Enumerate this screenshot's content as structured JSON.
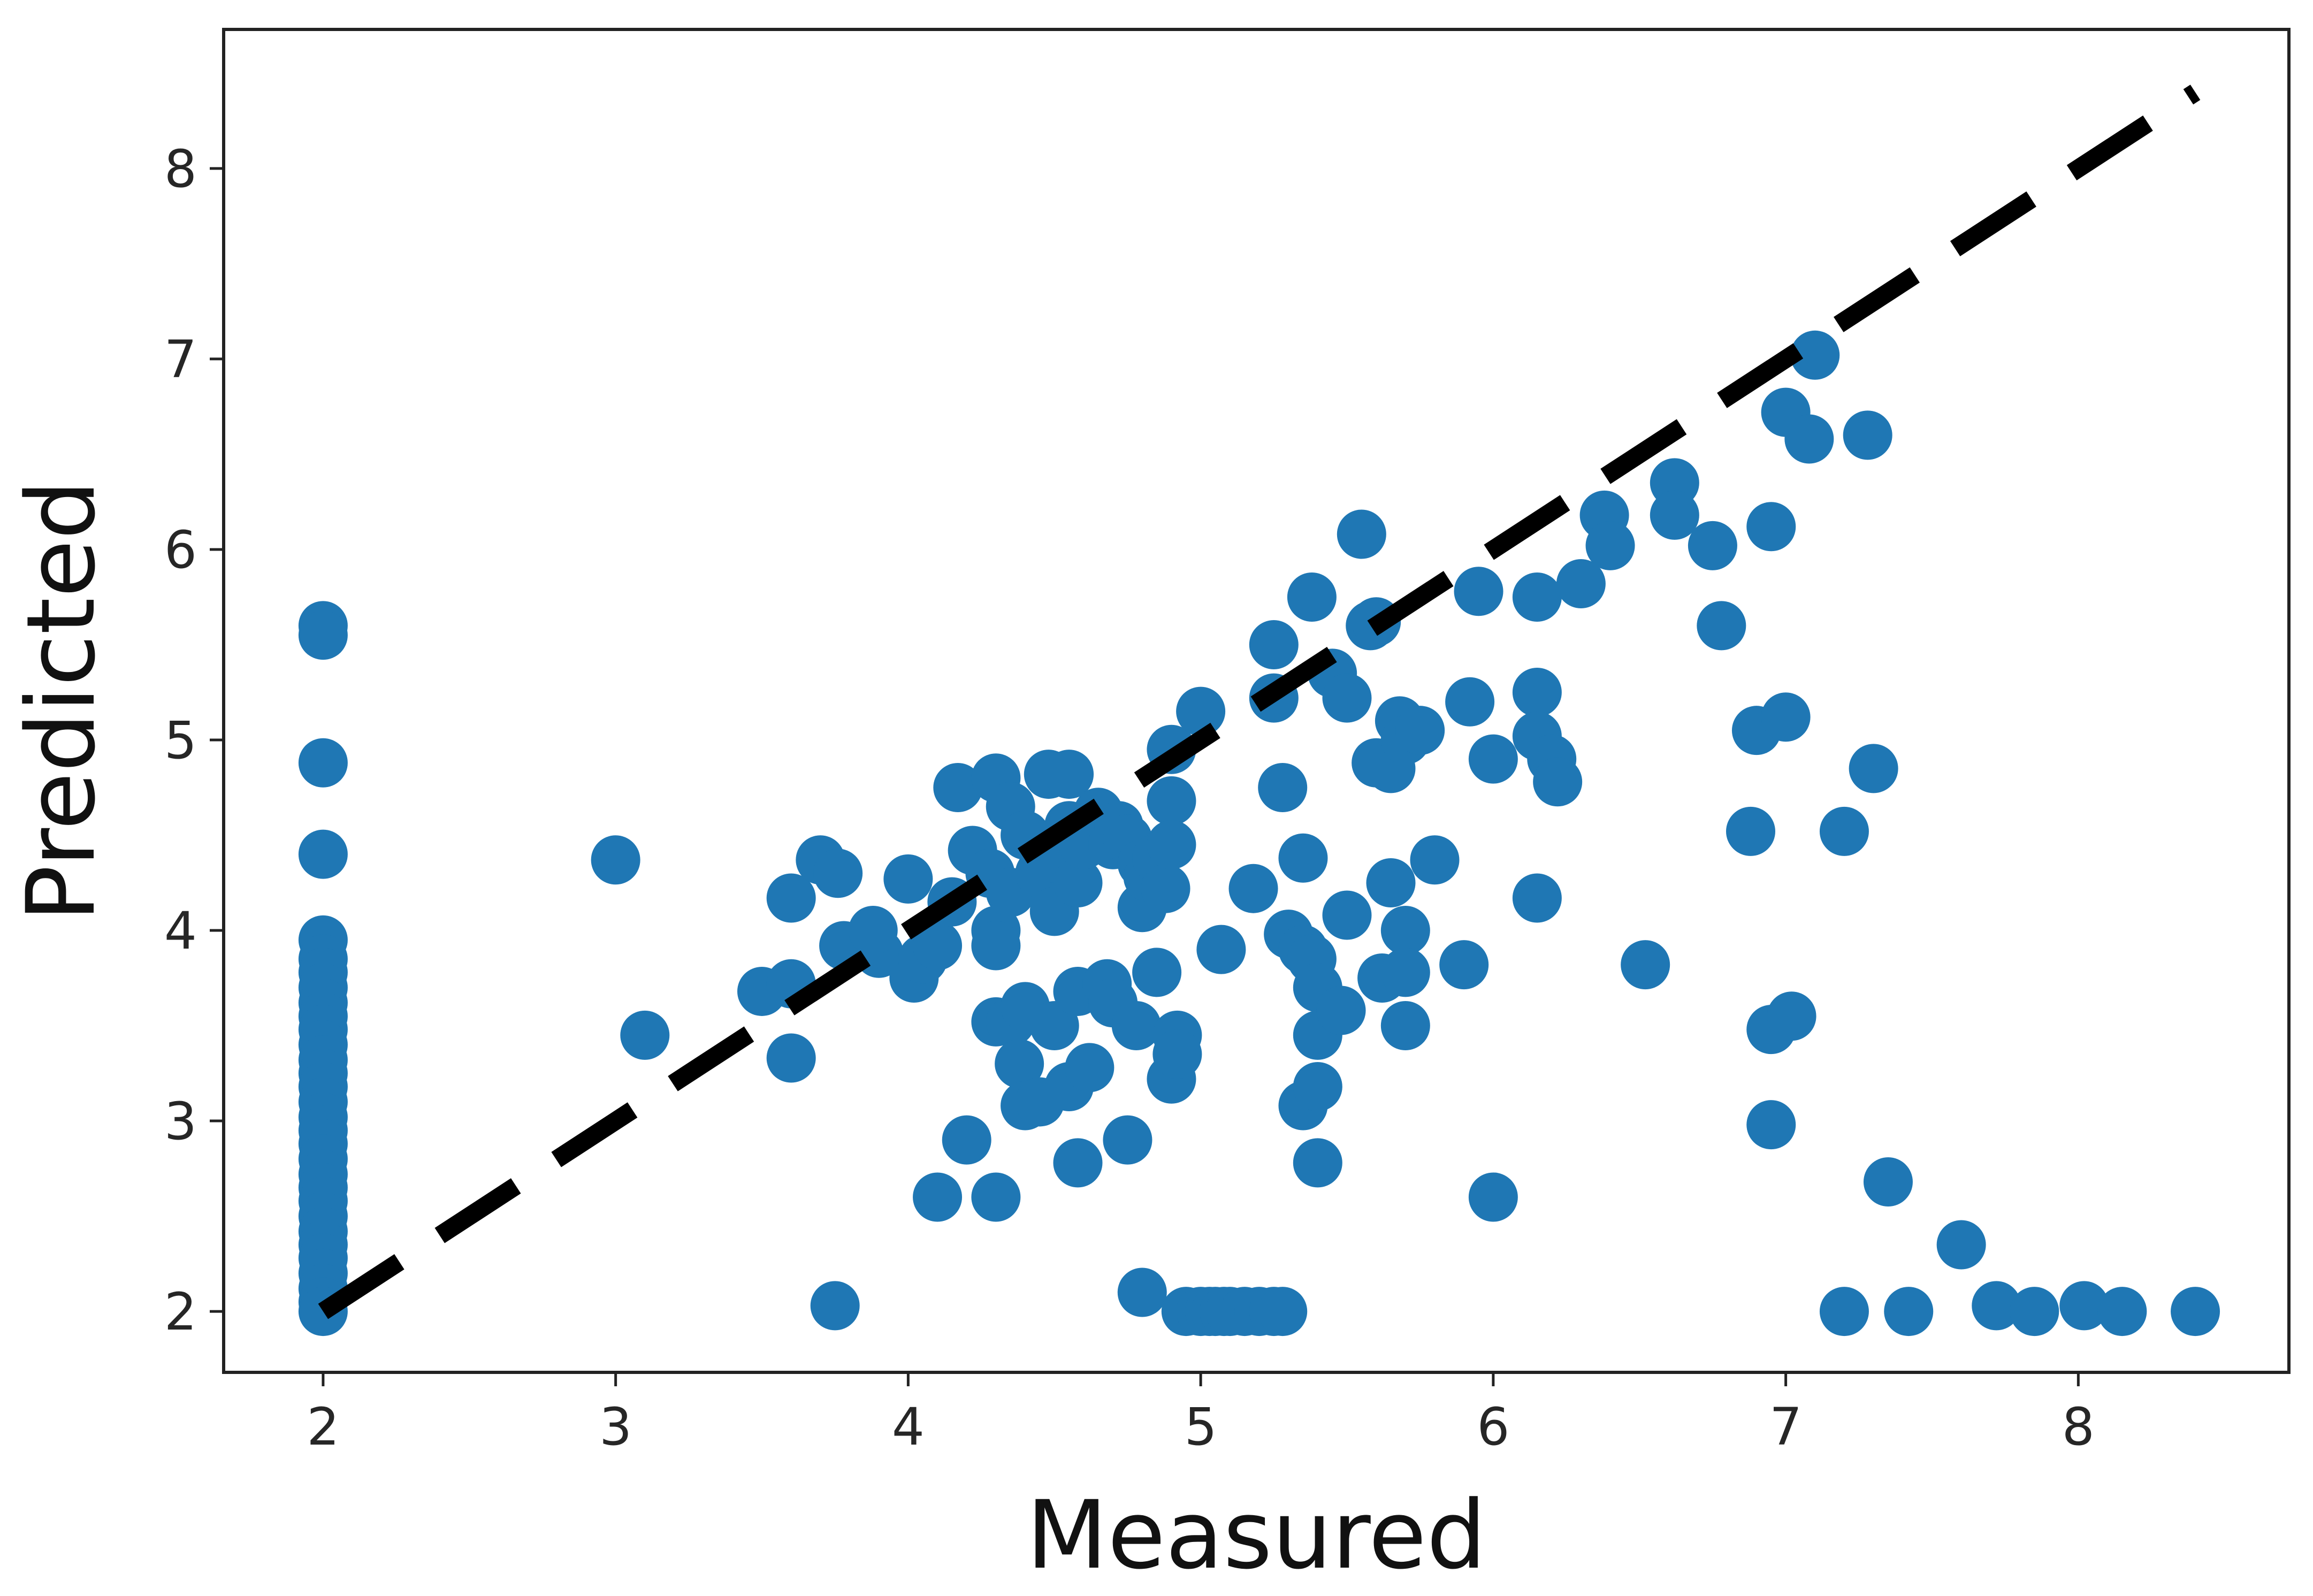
{
  "chart_data": {
    "type": "scatter",
    "title": "",
    "xlabel": "Measured",
    "ylabel": "Predicted",
    "xlim": [
      1.66,
      8.72
    ],
    "ylim": [
      1.68,
      8.73
    ],
    "xticks": [
      2,
      3,
      4,
      5,
      6,
      7,
      8
    ],
    "yticks": [
      2,
      3,
      4,
      5,
      6,
      7,
      8
    ],
    "grid": false,
    "legend": "none",
    "marker_color": "#1f77b4",
    "reference_line": {
      "style": "dashed",
      "color": "#000000",
      "from": [
        2,
        2
      ],
      "to": [
        8.4,
        8.4
      ]
    },
    "series": [
      {
        "points": [
          [
            2.0,
            5.6
          ],
          [
            2.0,
            5.55
          ],
          [
            2.0,
            4.88
          ],
          [
            2.0,
            4.4
          ],
          [
            2.0,
            3.95
          ],
          [
            2.0,
            3.85
          ],
          [
            2.0,
            3.78
          ],
          [
            2.0,
            3.7
          ],
          [
            2.0,
            3.62
          ],
          [
            2.0,
            3.55
          ],
          [
            2.0,
            3.48
          ],
          [
            2.0,
            3.4
          ],
          [
            2.0,
            3.32
          ],
          [
            2.0,
            3.25
          ],
          [
            2.0,
            3.18
          ],
          [
            2.0,
            3.1
          ],
          [
            2.0,
            3.02
          ],
          [
            2.0,
            2.95
          ],
          [
            2.0,
            2.88
          ],
          [
            2.0,
            2.8
          ],
          [
            2.0,
            2.72
          ],
          [
            2.0,
            2.65
          ],
          [
            2.0,
            2.58
          ],
          [
            2.0,
            2.5
          ],
          [
            2.0,
            2.42
          ],
          [
            2.0,
            2.35
          ],
          [
            2.0,
            2.28
          ],
          [
            2.0,
            2.2
          ],
          [
            2.0,
            2.12
          ],
          [
            2.0,
            2.05
          ],
          [
            2.0,
            2.0
          ],
          [
            3.0,
            4.37
          ],
          [
            3.1,
            3.45
          ],
          [
            3.5,
            3.68
          ],
          [
            3.6,
            3.72
          ],
          [
            3.6,
            3.33
          ],
          [
            3.6,
            4.17
          ],
          [
            3.7,
            4.37
          ],
          [
            3.76,
            4.3
          ],
          [
            3.75,
            2.03
          ],
          [
            3.78,
            3.92
          ],
          [
            3.9,
            3.88
          ],
          [
            3.88,
            4.0
          ],
          [
            4.0,
            4.27
          ],
          [
            4.02,
            3.75
          ],
          [
            4.05,
            3.85
          ],
          [
            4.1,
            3.92
          ],
          [
            4.1,
            2.6
          ],
          [
            4.15,
            4.15
          ],
          [
            4.17,
            4.75
          ],
          [
            4.2,
            2.9
          ],
          [
            4.22,
            4.42
          ],
          [
            4.28,
            4.3
          ],
          [
            4.3,
            4.8
          ],
          [
            4.3,
            4.0
          ],
          [
            4.3,
            3.92
          ],
          [
            4.3,
            3.52
          ],
          [
            4.3,
            2.6
          ],
          [
            4.35,
            4.65
          ],
          [
            4.35,
            4.2
          ],
          [
            4.35,
            3.52
          ],
          [
            4.38,
            3.3
          ],
          [
            4.4,
            3.08
          ],
          [
            4.4,
            4.5
          ],
          [
            4.4,
            3.6
          ],
          [
            4.45,
            4.3
          ],
          [
            4.45,
            3.1
          ],
          [
            4.48,
            4.82
          ],
          [
            4.5,
            4.38
          ],
          [
            4.5,
            4.1
          ],
          [
            4.5,
            3.5
          ],
          [
            4.55,
            4.82
          ],
          [
            4.55,
            4.55
          ],
          [
            4.58,
            4.25
          ],
          [
            4.58,
            3.68
          ],
          [
            4.55,
            3.18
          ],
          [
            4.58,
            2.78
          ],
          [
            4.6,
            4.45
          ],
          [
            4.62,
            3.28
          ],
          [
            4.65,
            4.62
          ],
          [
            4.68,
            3.72
          ],
          [
            4.7,
            3.62
          ],
          [
            4.7,
            4.45
          ],
          [
            4.72,
            4.55
          ],
          [
            4.75,
            4.48
          ],
          [
            4.75,
            2.9
          ],
          [
            4.78,
            3.5
          ],
          [
            4.8,
            4.35
          ],
          [
            4.8,
            4.12
          ],
          [
            4.8,
            2.1
          ],
          [
            4.82,
            4.28
          ],
          [
            4.85,
            4.38
          ],
          [
            4.85,
            3.78
          ],
          [
            4.88,
            4.22
          ],
          [
            4.9,
            4.68
          ],
          [
            4.9,
            4.45
          ],
          [
            4.9,
            4.95
          ],
          [
            4.9,
            3.22
          ],
          [
            4.92,
            3.45
          ],
          [
            4.92,
            3.35
          ],
          [
            4.95,
            2.0
          ],
          [
            5.0,
            2.0
          ],
          [
            5.03,
            2.0
          ],
          [
            5.05,
            2.0
          ],
          [
            5.08,
            2.0
          ],
          [
            5.1,
            2.0
          ],
          [
            5.15,
            2.0
          ],
          [
            5.2,
            2.0
          ],
          [
            5.25,
            2.0
          ],
          [
            5.28,
            2.0
          ],
          [
            5.0,
            5.15
          ],
          [
            5.07,
            3.9
          ],
          [
            5.18,
            4.22
          ],
          [
            5.25,
            5.5
          ],
          [
            5.25,
            5.22
          ],
          [
            5.28,
            4.75
          ],
          [
            5.3,
            3.98
          ],
          [
            5.35,
            3.9
          ],
          [
            5.35,
            3.08
          ],
          [
            5.35,
            4.38
          ],
          [
            5.38,
            5.75
          ],
          [
            5.38,
            3.85
          ],
          [
            5.4,
            3.7
          ],
          [
            5.4,
            3.45
          ],
          [
            5.4,
            3.18
          ],
          [
            5.4,
            2.78
          ],
          [
            5.45,
            5.35
          ],
          [
            5.48,
            3.58
          ],
          [
            5.5,
            5.22
          ],
          [
            5.5,
            4.08
          ],
          [
            5.55,
            6.08
          ],
          [
            5.58,
            5.6
          ],
          [
            5.6,
            5.62
          ],
          [
            5.6,
            4.88
          ],
          [
            5.62,
            3.75
          ],
          [
            5.65,
            4.25
          ],
          [
            5.65,
            4.85
          ],
          [
            5.68,
            5.1
          ],
          [
            5.7,
            5.0
          ],
          [
            5.7,
            4.0
          ],
          [
            5.7,
            3.78
          ],
          [
            5.7,
            3.5
          ],
          [
            5.75,
            5.05
          ],
          [
            5.8,
            4.37
          ],
          [
            5.9,
            3.82
          ],
          [
            5.92,
            5.2
          ],
          [
            5.95,
            5.78
          ],
          [
            6.0,
            4.9
          ],
          [
            6.0,
            2.6
          ],
          [
            6.15,
            5.75
          ],
          [
            6.15,
            5.25
          ],
          [
            6.15,
            5.02
          ],
          [
            6.15,
            4.17
          ],
          [
            6.2,
            4.9
          ],
          [
            6.22,
            4.78
          ],
          [
            6.3,
            5.82
          ],
          [
            6.38,
            6.18
          ],
          [
            6.4,
            6.02
          ],
          [
            6.52,
            3.82
          ],
          [
            6.62,
            6.35
          ],
          [
            6.62,
            6.18
          ],
          [
            6.75,
            6.02
          ],
          [
            6.78,
            5.6
          ],
          [
            6.88,
            4.52
          ],
          [
            6.9,
            5.05
          ],
          [
            6.95,
            6.12
          ],
          [
            6.95,
            3.48
          ],
          [
            6.95,
            2.98
          ],
          [
            7.0,
            6.72
          ],
          [
            7.0,
            5.12
          ],
          [
            7.02,
            3.55
          ],
          [
            7.08,
            6.58
          ],
          [
            7.1,
            7.02
          ],
          [
            7.2,
            4.52
          ],
          [
            7.2,
            2.0
          ],
          [
            7.28,
            6.6
          ],
          [
            7.3,
            4.85
          ],
          [
            7.35,
            2.68
          ],
          [
            7.42,
            2.0
          ],
          [
            7.6,
            2.35
          ],
          [
            7.72,
            2.03
          ],
          [
            7.85,
            2.0
          ],
          [
            8.02,
            2.03
          ],
          [
            8.15,
            2.0
          ],
          [
            8.4,
            2.0
          ]
        ]
      }
    ]
  }
}
